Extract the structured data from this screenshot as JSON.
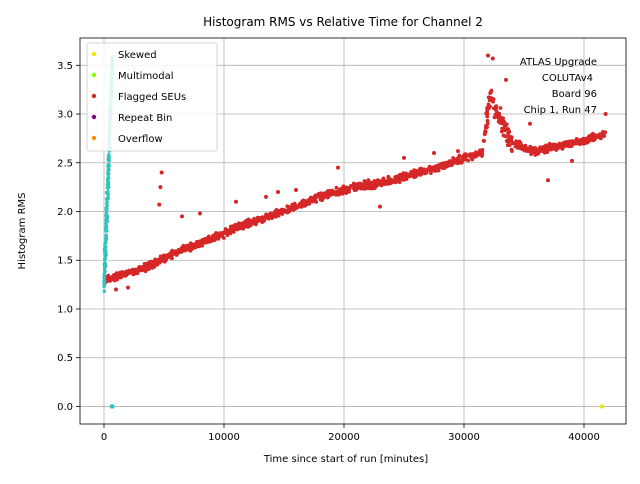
{
  "chart_data": {
    "type": "scatter",
    "title": "Histogram RMS vs Relative Time for Channel 2",
    "xlabel": "Time since start of run [minutes]",
    "ylabel": "Histogram RMS",
    "xlim": [
      -2000,
      43500
    ],
    "ylim": [
      -0.18,
      3.78
    ],
    "x_ticks": [
      0,
      10000,
      20000,
      30000,
      40000
    ],
    "y_ticks": [
      0.0,
      0.5,
      1.0,
      1.5,
      2.0,
      2.5,
      3.0,
      3.5
    ],
    "grid": true,
    "legend_position": "top-left",
    "annotation": [
      "ATLAS Upgrade",
      "COLUTAv4",
      "Board 96",
      "Chip 1, Run 47"
    ],
    "colors": {
      "baseline": "#2ec4c0",
      "flagged": "#d62728",
      "skewed": "#e8e800",
      "multimodal": "#7fff00",
      "repeat_bin": "#800080",
      "overflow": "#ff8c00"
    },
    "series": [
      {
        "name": "Skewed",
        "color": "#e8e800",
        "points": [
          [
            41500,
            0.0
          ]
        ]
      },
      {
        "name": "Multimodal",
        "color": "#7fff00",
        "points": []
      },
      {
        "name": "Flagged SEUs",
        "color": "#d62728",
        "trend": [
          [
            0,
            1.3
          ],
          [
            3000,
            1.4
          ],
          [
            6000,
            1.58
          ],
          [
            9000,
            1.72
          ],
          [
            12000,
            1.88
          ],
          [
            15000,
            2.0
          ],
          [
            18000,
            2.15
          ],
          [
            21000,
            2.25
          ],
          [
            24000,
            2.32
          ],
          [
            27000,
            2.42
          ],
          [
            30000,
            2.55
          ],
          [
            31500,
            2.6
          ],
          [
            32200,
            3.2
          ],
          [
            33000,
            2.95
          ],
          [
            34000,
            2.7
          ],
          [
            36000,
            2.62
          ],
          [
            38000,
            2.68
          ],
          [
            40000,
            2.72
          ],
          [
            41800,
            2.8
          ]
        ],
        "outliers": [
          [
            4800,
            2.4
          ],
          [
            4700,
            2.25
          ],
          [
            4600,
            2.07
          ],
          [
            11000,
            2.1
          ],
          [
            13500,
            2.15
          ],
          [
            14500,
            2.2
          ],
          [
            32000,
            3.6
          ],
          [
            32400,
            3.57
          ],
          [
            33500,
            3.35
          ],
          [
            39000,
            2.52
          ],
          [
            41800,
            3.0
          ],
          [
            37000,
            2.32
          ],
          [
            6500,
            1.95
          ],
          [
            8000,
            1.98
          ],
          [
            16000,
            2.22
          ],
          [
            19500,
            2.45
          ],
          [
            23000,
            2.05
          ],
          [
            25000,
            2.55
          ],
          [
            27500,
            2.6
          ],
          [
            29500,
            2.62
          ],
          [
            2000,
            1.22
          ],
          [
            1000,
            1.2
          ],
          [
            35500,
            2.9
          ]
        ]
      },
      {
        "name": "Repeat Bin",
        "color": "#800080",
        "points": []
      },
      {
        "name": "Overflow",
        "color": "#ff8c00",
        "points": []
      },
      {
        "name": "",
        "color": "#2ec4c0",
        "band": {
          "x_start": 0,
          "x_end": 700,
          "y_start": 1.2,
          "y_end": 3.58
        },
        "points": [
          [
            700,
            0.0
          ],
          [
            650,
            0.0
          ]
        ]
      }
    ]
  }
}
